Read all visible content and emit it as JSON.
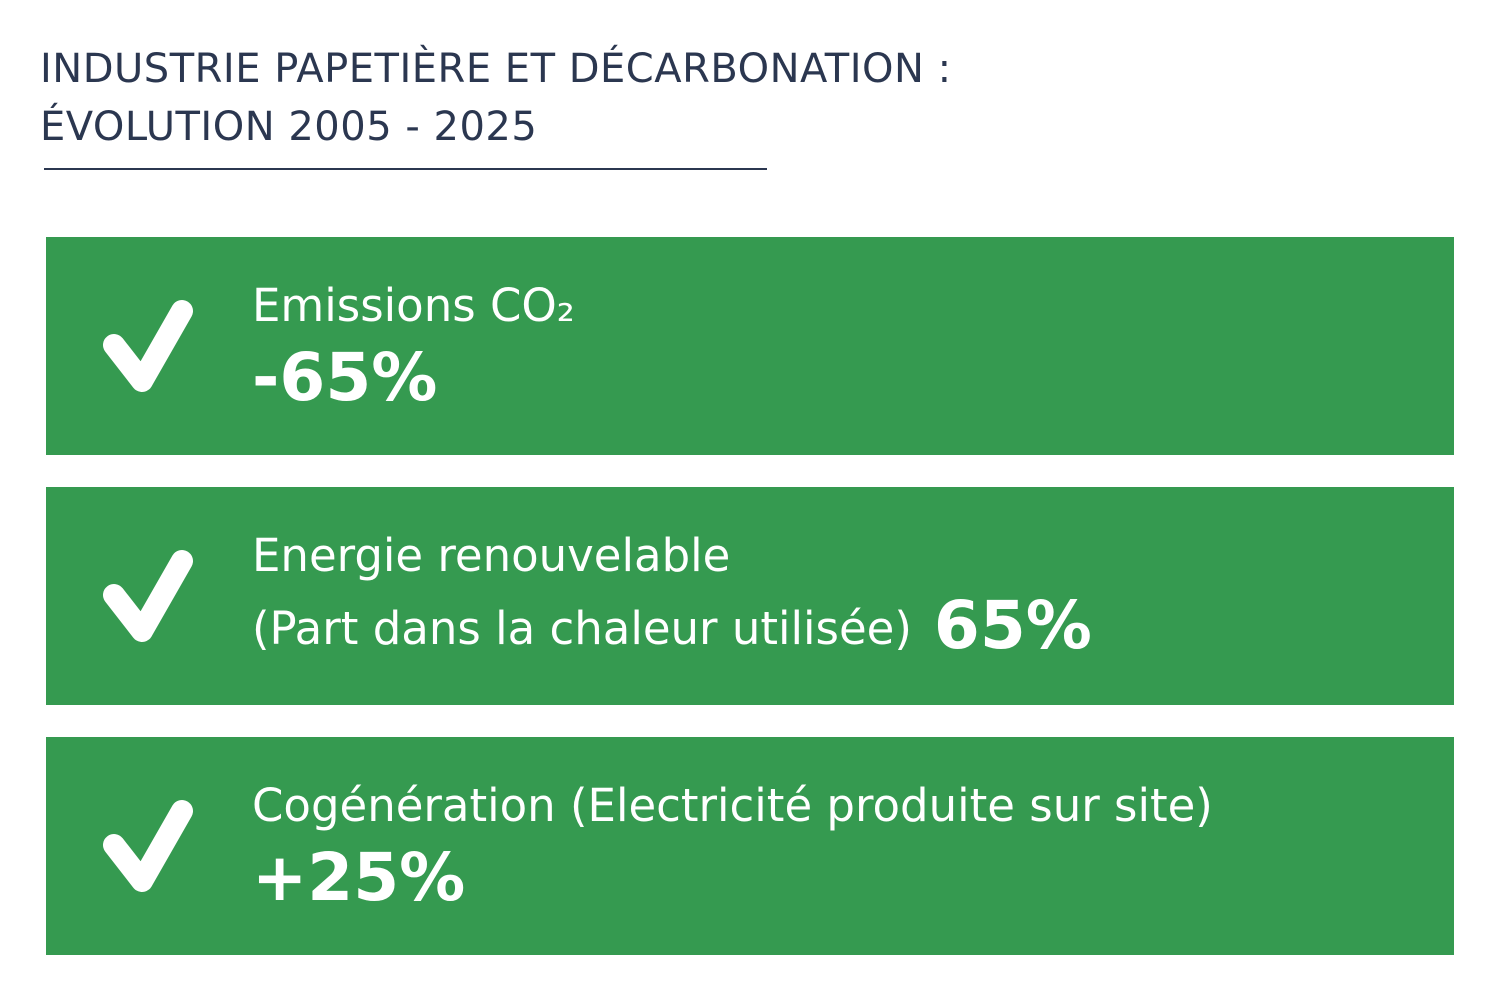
{
  "header": {
    "title_line1": "INDUSTRIE PAPETIÈRE ET DÉCARBONATION :",
    "title_line2": "ÉVOLUTION 2005 - 2025"
  },
  "colors": {
    "card_background": "#359a50",
    "title_text": "#2b3750",
    "card_text": "#ffffff"
  },
  "cards": [
    {
      "icon": "check-icon",
      "label": "Emissions CO₂",
      "value": "-65%"
    },
    {
      "icon": "check-icon",
      "label": "Energie renouvelable",
      "sublabel": "(Part dans la chaleur utilisée)",
      "value": "65%"
    },
    {
      "icon": "check-icon",
      "label": "Cogénération (Electricité produite sur site)",
      "value": "+25%"
    }
  ]
}
